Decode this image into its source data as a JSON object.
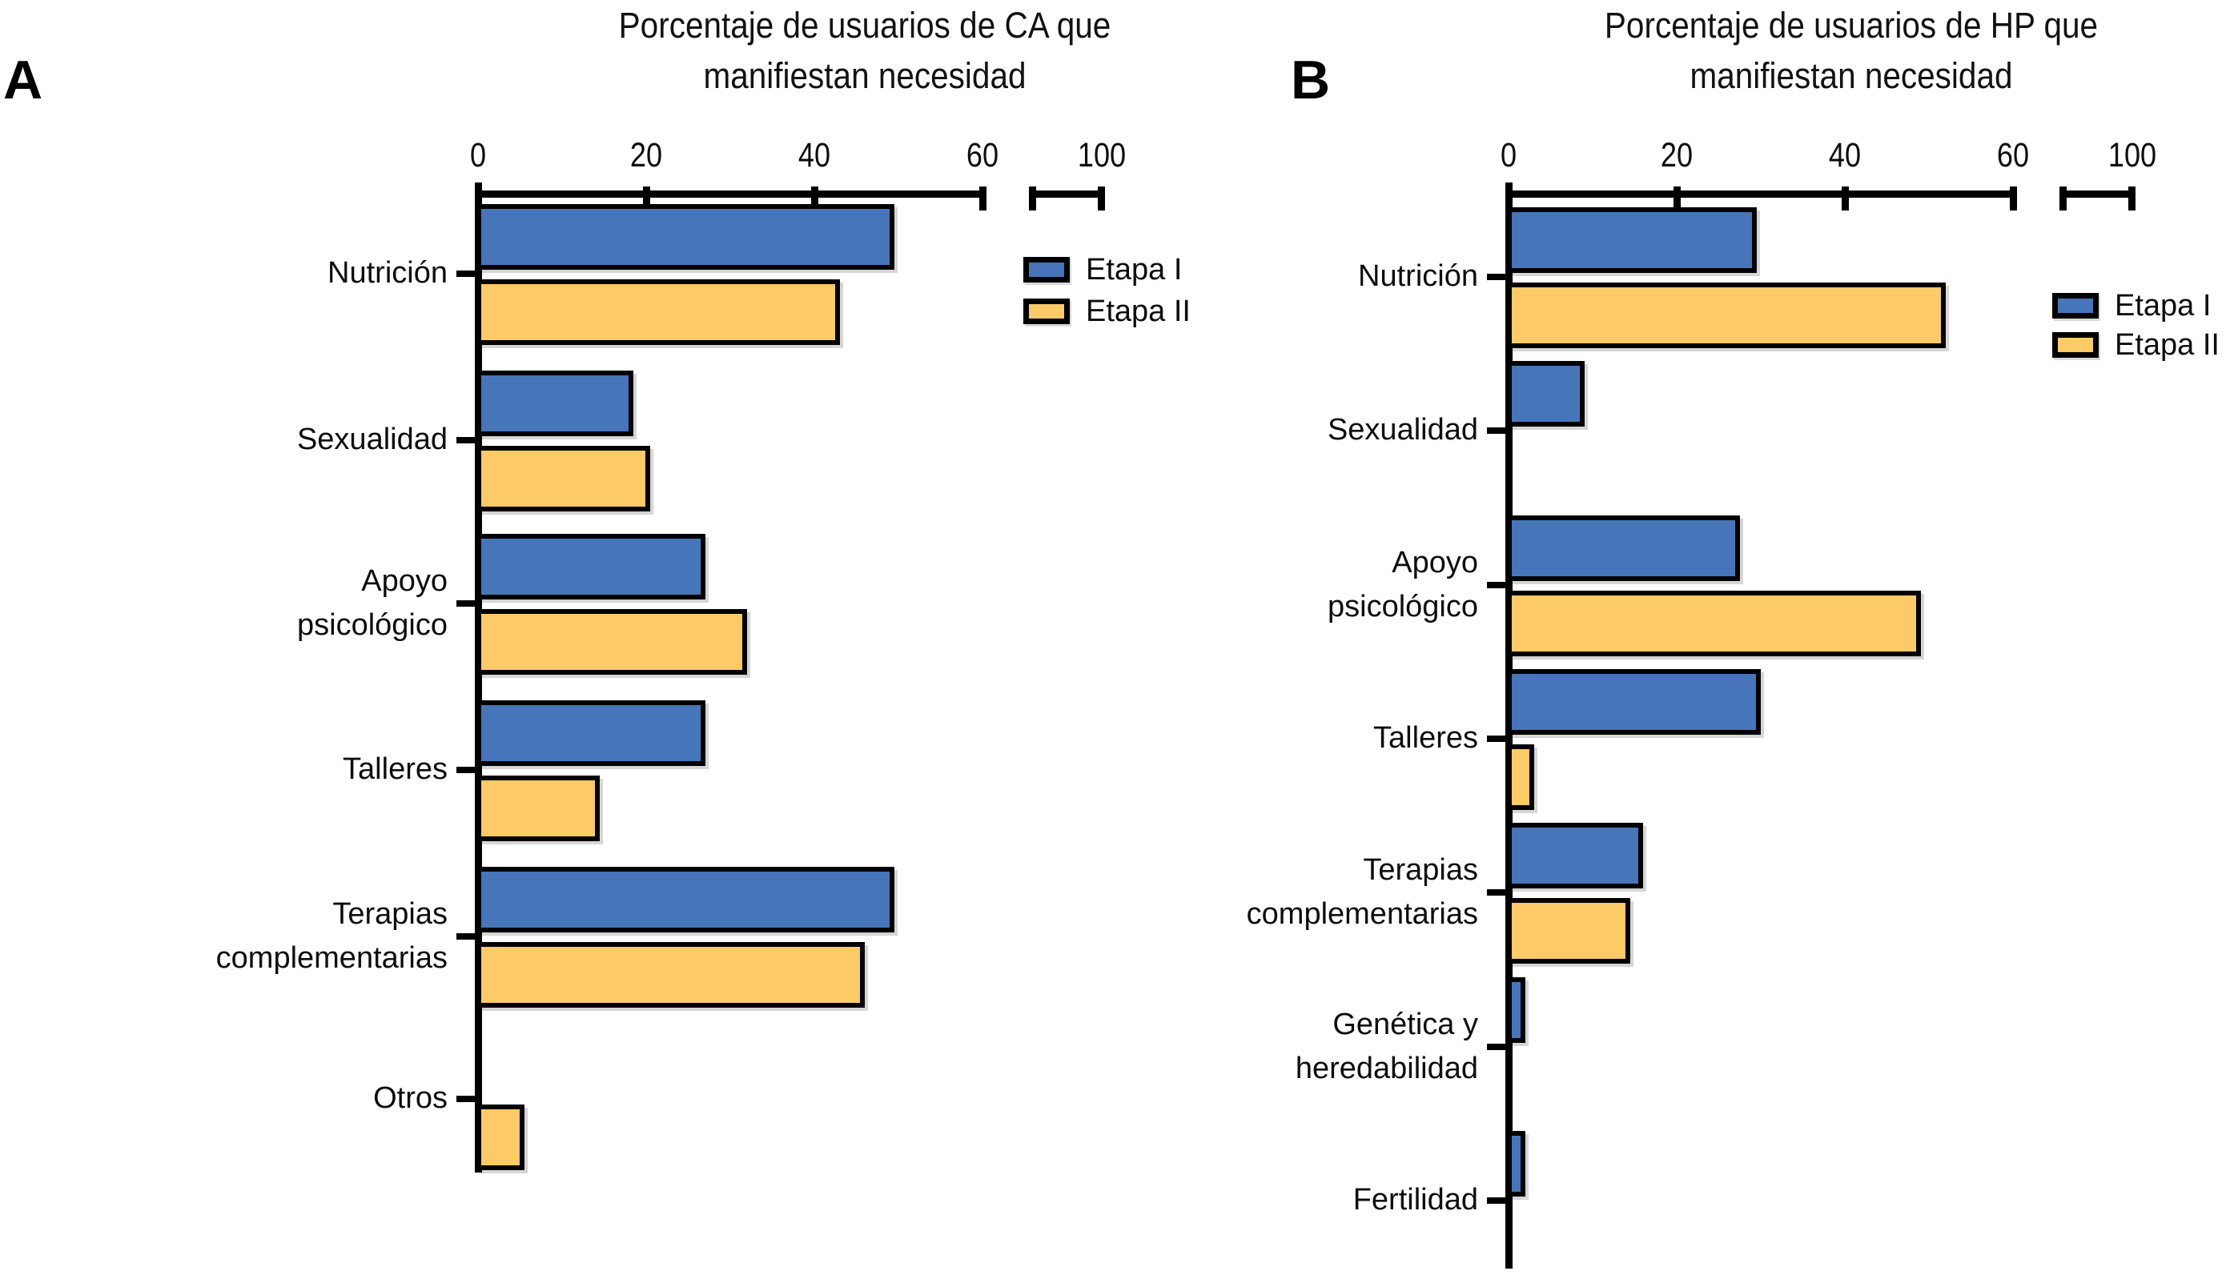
{
  "figure": {
    "background": "#ffffff",
    "colors": {
      "etapa1_fill": "#4676B9",
      "etapa2_fill": "#FCCA67",
      "outline": "#000000",
      "text": "#111111"
    },
    "panels": [
      {
        "panel_label": "A",
        "title_lines": [
          "Porcentaje de usuarios de CA que",
          "manifiestan necesidad"
        ],
        "legend": [
          "Etapa I",
          "Etapa II"
        ],
        "chart_data": {
          "type": "bar",
          "orientation": "horizontal",
          "title": "Porcentaje de usuarios de CA que manifiestan necesidad",
          "xlabel": "",
          "ylabel": "",
          "xlim": [
            0,
            60
          ],
          "x_ticks": [
            0,
            20,
            40,
            60,
            100
          ],
          "x_tick_labels": [
            "0",
            "20",
            "40",
            "60",
            "100"
          ],
          "axis_break_between": [
            60,
            100
          ],
          "grid": false,
          "legend_position": "right",
          "categories": [
            "Nutrición",
            "Sexualidad",
            "Apoyo psicológico",
            "Talleres",
            "Terapias complementarias",
            "Otros"
          ],
          "category_label_lines": [
            [
              "Nutrición"
            ],
            [
              "Sexualidad"
            ],
            [
              "Apoyo",
              "psicológico"
            ],
            [
              "Talleres"
            ],
            [
              "Terapias",
              "complementarias"
            ],
            [
              "Otros"
            ]
          ],
          "series": [
            {
              "name": "Etapa I",
              "color": "#4676B9",
              "values": [
                49.5,
                18.5,
                27,
                27,
                49.5,
                0
              ]
            },
            {
              "name": "Etapa II",
              "color": "#FCCA67",
              "values": [
                43,
                20.5,
                32,
                14.5,
                46,
                5.5
              ]
            }
          ]
        }
      },
      {
        "panel_label": "B",
        "title_lines": [
          "Porcentaje de usuarios de HP que",
          "manifiestan necesidad"
        ],
        "legend": [
          "Etapa I",
          "Etapa II"
        ],
        "chart_data": {
          "type": "bar",
          "orientation": "horizontal",
          "title": "Porcentaje de usuarios de HP que manifiestan necesidad",
          "xlabel": "",
          "ylabel": "",
          "xlim": [
            0,
            60
          ],
          "x_ticks": [
            0,
            20,
            40,
            60,
            100
          ],
          "x_tick_labels": [
            "0",
            "20",
            "40",
            "60",
            "100"
          ],
          "axis_break_between": [
            60,
            100
          ],
          "grid": false,
          "legend_position": "right",
          "categories": [
            "Nutrición",
            "Sexualidad",
            "Apoyo psicológico",
            "Talleres",
            "Terapias complementarias",
            "Genética y heredabilidad",
            "Fertilidad"
          ],
          "category_label_lines": [
            [
              "Nutrición"
            ],
            [
              "Sexualidad"
            ],
            [
              "Apoyo",
              "psicológico"
            ],
            [
              "Talleres"
            ],
            [
              "Terapias",
              "complementarias"
            ],
            [
              "Genética y",
              "heredabilidad"
            ],
            [
              "Fertilidad"
            ]
          ],
          "series": [
            {
              "name": "Etapa I",
              "color": "#4676B9",
              "values": [
                29.5,
                9,
                27.5,
                30,
                16,
                2,
                2
              ]
            },
            {
              "name": "Etapa II",
              "color": "#FCCA67",
              "values": [
                52,
                0,
                49,
                3,
                14.5,
                0,
                0
              ]
            }
          ]
        }
      }
    ]
  }
}
